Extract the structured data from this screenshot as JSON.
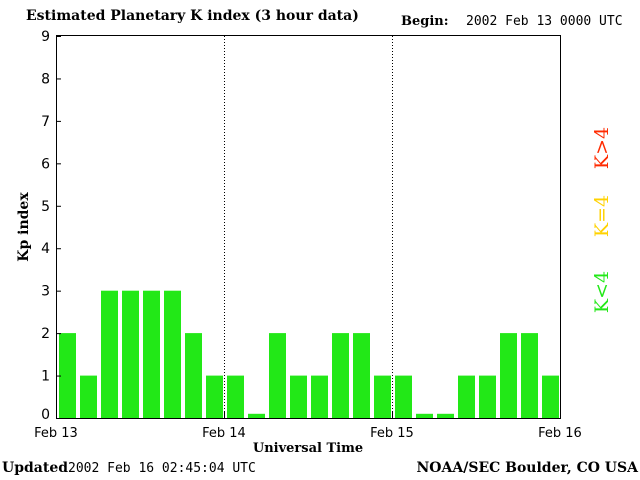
{
  "header": {
    "title": "Estimated Planetary K index (3 hour data)",
    "begin_label": "Begin:",
    "begin_value": "2002 Feb 13 0000 UTC"
  },
  "footer": {
    "updated_label": "Updated",
    "updated_value": "2002 Feb 16 02:45:04 UTC",
    "credit": "NOAA/SEC Boulder, CO USA"
  },
  "legend": {
    "high": {
      "label": "K>4",
      "color": "#ff2a00"
    },
    "mid": {
      "label": "K=4",
      "color": "#ffd200"
    },
    "low": {
      "label": "K<4",
      "color": "#22e817"
    }
  },
  "chart_data": {
    "type": "bar",
    "xlabel": "Universal Time",
    "ylabel": "Kp index",
    "ylim": [
      0,
      9
    ],
    "yticks": [
      0,
      1,
      2,
      3,
      4,
      5,
      6,
      7,
      8,
      9
    ],
    "day_labels": [
      "Feb 13",
      "Feb 14",
      "Feb 15",
      "Feb 16"
    ],
    "values": [
      2,
      1,
      3,
      3,
      3,
      3,
      2,
      1,
      1,
      0.1,
      2,
      1,
      1,
      2,
      2,
      1,
      1,
      0.1,
      0.1,
      1,
      1,
      2,
      2,
      1
    ],
    "bar_color": "#22e817",
    "grid": false
  }
}
